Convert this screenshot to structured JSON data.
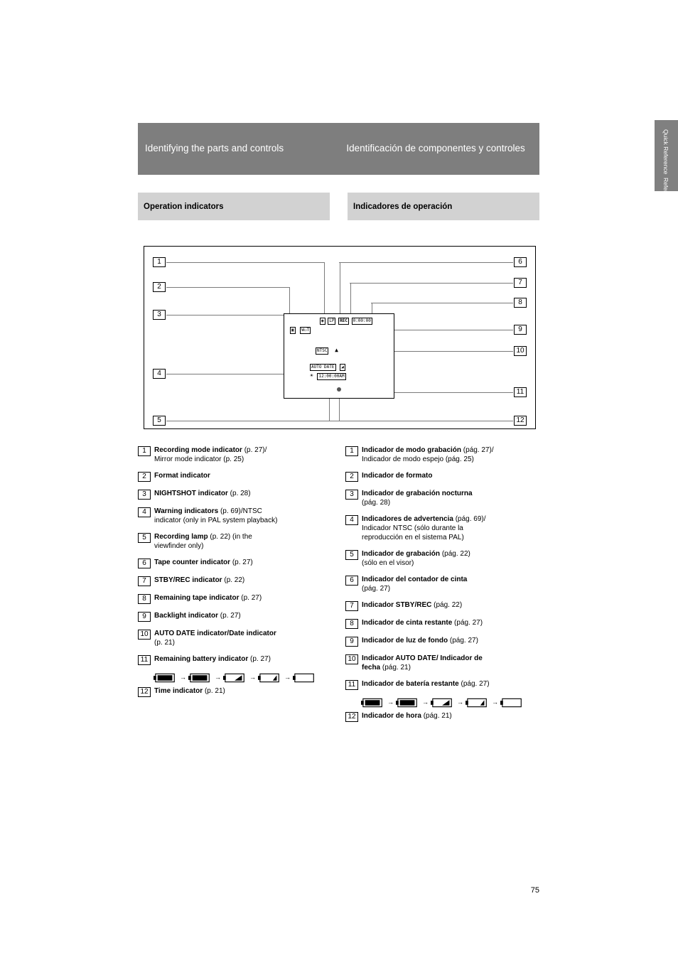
{
  "colors": {
    "title_bg": "#7e7e7e",
    "title_fg": "#ffffff",
    "sub_bg": "#d2d2d2",
    "leader": "#7a7a7a",
    "text": "#000000",
    "bg": "#ffffff"
  },
  "side": {
    "en": "Quick Reference",
    "es": "Referencia rápida"
  },
  "title": {
    "en": "Identifying the parts and controls",
    "es": "Identificación de componentes y controles"
  },
  "sub": {
    "en": "Operation indicators",
    "es": "Indicadores de operación"
  },
  "diagram": {
    "left_nums": [
      "1",
      "2",
      "3",
      "4",
      "5"
    ],
    "right_nums": [
      "6",
      "7",
      "8",
      "9",
      "10",
      "11",
      "12"
    ],
    "osd": {
      "top_row": [
        "",
        "LP",
        "REC",
        "0:00:00"
      ],
      "zoom_row": [
        "",
        "W",
        "T"
      ],
      "ntsc": "NTSC",
      "eject": "▲",
      "autodate": "AUTO DATE",
      "backlight": "",
      "time": "12:00:00AM"
    }
  },
  "items_en": [
    {
      "n": "1",
      "t": "Recording mode indicator (p. 27)/\nMirror mode indicator (p. 25)"
    },
    {
      "n": "2",
      "t": "Format indicator"
    },
    {
      "n": "3",
      "t": "NIGHTSHOT indicator (p. 28)"
    },
    {
      "n": "4",
      "t": "Warning indicators (p. 69)/NTSC\nindicator (only in PAL system playback)"
    },
    {
      "n": "5",
      "t": "Recording lamp (p. 22) (in the\nviewfinder only)"
    },
    {
      "n": "6",
      "t": "Tape counter indicator (p. 27)"
    },
    {
      "n": "7",
      "t": "STBY/REC indicator (p. 22)"
    },
    {
      "n": "8",
      "t": "Remaining tape indicator (p. 27)"
    },
    {
      "n": "9",
      "t": "Backlight indicator (p. 27)"
    },
    {
      "n": "10",
      "t": "AUTO DATE indicator/Date indicator\n(p. 21)"
    },
    {
      "n": "11",
      "t": "Remaining battery indicator (p. 27)"
    },
    {
      "n": "12",
      "t": "Time indicator (p. 21)"
    }
  ],
  "items_es": [
    {
      "n": "1",
      "t": "Indicador de modo grabación (pág. 27)/\nIndicador de modo espejo (pág. 25)"
    },
    {
      "n": "2",
      "t": "Indicador de formato"
    },
    {
      "n": "3",
      "t": "Indicador de grabación nocturna\n(pág. 28)"
    },
    {
      "n": "4",
      "t": "Indicadores de advertencia (pág. 69)/\nIndicador NTSC (sólo durante la\nreproducción en el sistema PAL)"
    },
    {
      "n": "5",
      "t": "Indicador de grabación (pág. 22)\n(sólo en el visor)"
    },
    {
      "n": "6",
      "t": "Indicador del contador de cinta\n(pág. 27)"
    },
    {
      "n": "7",
      "t": "Indicador STBY/REC (pág. 22)"
    },
    {
      "n": "8",
      "t": "Indicador de cinta restante (pág. 27)"
    },
    {
      "n": "9",
      "t": "Indicador de luz de fondo (pág. 27)"
    },
    {
      "n": "10",
      "t": "Indicador AUTO DATE/ Indicador de\nfecha (pág. 21)"
    },
    {
      "n": "11",
      "t": "Indicador de batería restante (pág. 27)"
    },
    {
      "n": "12",
      "t": "Indicador de hora (pág. 21)"
    }
  ],
  "battery_levels": [
    1.0,
    0.75,
    0.5,
    0.25,
    0.0
  ],
  "page": "75"
}
